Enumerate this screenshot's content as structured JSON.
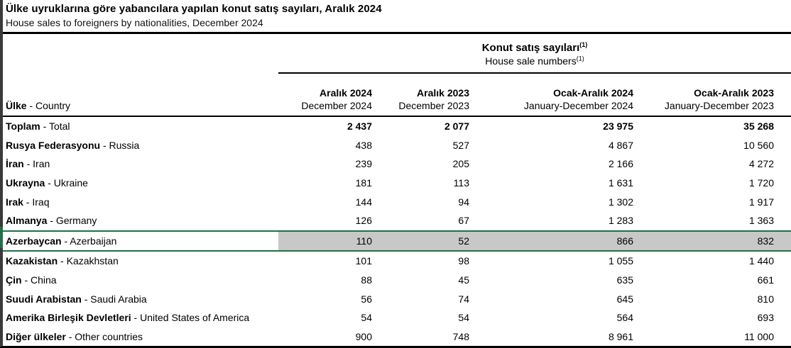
{
  "header": {
    "title_tr": "Ülke uyruklarına göre yabancılara yapılan konut satış sayıları, Aralık 2024",
    "title_en": "House sales to foreigners by nationalities, December 2024"
  },
  "table": {
    "separator": " - ",
    "group_header": {
      "tr": "Konut satış sayıları",
      "en": "House sale numbers",
      "footnote": "(1)"
    },
    "country_header": {
      "tr": "Ülke",
      "en": "Country"
    },
    "columns": [
      {
        "tr": "Aralık 2024",
        "en": "December 2024"
      },
      {
        "tr": "Aralık 2023",
        "en": "December 2023"
      },
      {
        "tr": "Ocak-Aralık 2024",
        "en": "January-December 2024"
      },
      {
        "tr": "Ocak-Aralık 2023",
        "en": "January-December 2023"
      }
    ],
    "rows": [
      {
        "tr": "Toplam",
        "en": "Total",
        "values": [
          "2 437",
          "2 077",
          "23 975",
          "35 268"
        ],
        "bold": true,
        "highlight": false
      },
      {
        "tr": "Rusya Federasyonu",
        "en": "Russia",
        "values": [
          "438",
          "527",
          "4 867",
          "10 560"
        ],
        "bold": false,
        "highlight": false
      },
      {
        "tr": "İran",
        "en": "Iran",
        "values": [
          "239",
          "205",
          "2 166",
          "4 272"
        ],
        "bold": false,
        "highlight": false
      },
      {
        "tr": "Ukrayna",
        "en": "Ukraine",
        "values": [
          "181",
          "113",
          "1 631",
          "1 720"
        ],
        "bold": false,
        "highlight": false
      },
      {
        "tr": "Irak",
        "en": "Iraq",
        "values": [
          "144",
          "94",
          "1 302",
          "1 917"
        ],
        "bold": false,
        "highlight": false
      },
      {
        "tr": "Almanya",
        "en": "Germany",
        "values": [
          "126",
          "67",
          "1 283",
          "1 363"
        ],
        "bold": false,
        "highlight": false
      },
      {
        "tr": "Azerbaycan",
        "en": "Azerbaijan",
        "values": [
          "110",
          "52",
          "866",
          "832"
        ],
        "bold": false,
        "highlight": true
      },
      {
        "tr": "Kazakistan",
        "en": "Kazakhstan",
        "values": [
          "101",
          "98",
          "1 055",
          "1 440"
        ],
        "bold": false,
        "highlight": false
      },
      {
        "tr": "Çin",
        "en": "China",
        "values": [
          "88",
          "45",
          "635",
          "661"
        ],
        "bold": false,
        "highlight": false
      },
      {
        "tr": "Suudi Arabistan",
        "en": "Saudi Arabia",
        "values": [
          "56",
          "74",
          "645",
          "810"
        ],
        "bold": false,
        "highlight": false
      },
      {
        "tr": "Amerika Birleşik Devletleri",
        "en": "United States of America",
        "values": [
          "54",
          "54",
          "564",
          "693"
        ],
        "bold": false,
        "highlight": false
      },
      {
        "tr": "Diğer ülkeler",
        "en": "Other countries",
        "values": [
          "900",
          "748",
          "8 961",
          "11 000"
        ],
        "bold": false,
        "highlight": false
      }
    ]
  },
  "colors": {
    "highlight_border": "#1e7145",
    "highlight_fill": "#c8c8c8",
    "rule": "#000000",
    "left_bar": "#3a3a3a"
  }
}
